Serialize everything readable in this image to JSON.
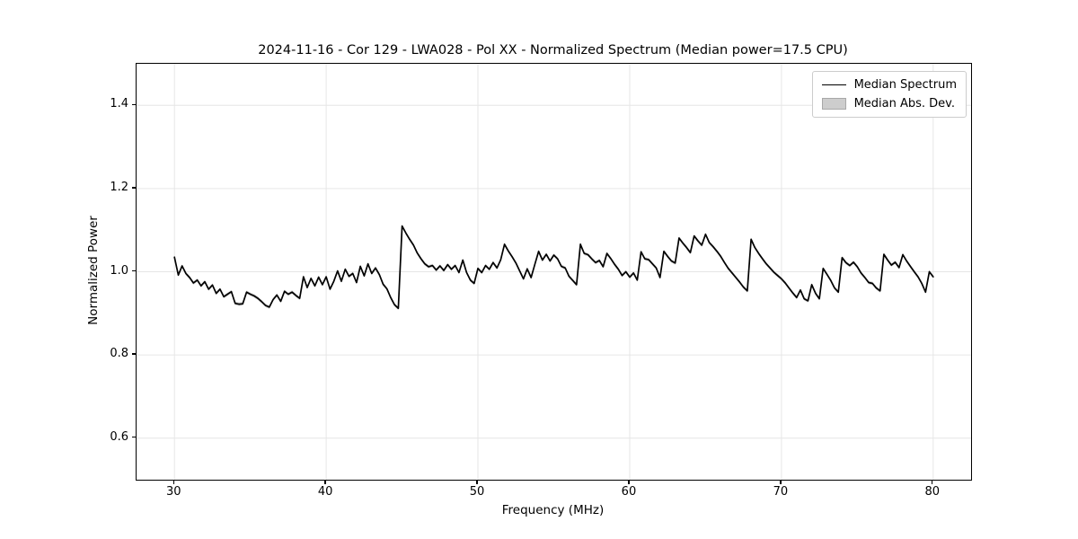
{
  "figure": {
    "background": "#ffffff"
  },
  "chart_data": {
    "type": "line",
    "title": "2024-11-16 - Cor 129 - LWA028 - Pol XX - Normalized Spectrum (Median power=17.5 CPU)",
    "xlabel": "Frequency (MHz)",
    "ylabel": "Normalized Power",
    "xlim": [
      27.5,
      82.5
    ],
    "ylim": [
      0.5,
      1.5
    ],
    "grid": true,
    "grid_color": "#e6e6e6",
    "axis_color": "#000000",
    "legend_position": "upper right",
    "xticks": {
      "values": [
        30,
        40,
        50,
        60,
        70,
        80
      ],
      "labels": [
        "30",
        "40",
        "50",
        "60",
        "70",
        "80"
      ]
    },
    "yticks": {
      "values": [
        0.6,
        0.8,
        1.0,
        1.2,
        1.4
      ],
      "labels": [
        "0.6",
        "0.8",
        "1.0",
        "1.2",
        "1.4"
      ]
    },
    "series": [
      {
        "name": "Median Spectrum",
        "type": "line",
        "color": "#000000",
        "linewidth": 1.7,
        "x_start": 30.0,
        "x_step": 0.25,
        "values": [
          1.035,
          0.992,
          1.014,
          0.996,
          0.986,
          0.973,
          0.98,
          0.966,
          0.976,
          0.958,
          0.968,
          0.948,
          0.958,
          0.94,
          0.946,
          0.952,
          0.924,
          0.922,
          0.923,
          0.951,
          0.946,
          0.942,
          0.936,
          0.928,
          0.919,
          0.915,
          0.933,
          0.944,
          0.929,
          0.953,
          0.946,
          0.951,
          0.943,
          0.936,
          0.988,
          0.962,
          0.984,
          0.966,
          0.987,
          0.969,
          0.988,
          0.958,
          0.977,
          1.002,
          0.977,
          1.006,
          0.989,
          0.996,
          0.974,
          1.013,
          0.99,
          1.019,
          0.996,
          1.009,
          0.993,
          0.97,
          0.959,
          0.938,
          0.921,
          0.912,
          1.11,
          1.093,
          1.078,
          1.064,
          1.045,
          1.031,
          1.019,
          1.012,
          1.015,
          1.004,
          1.014,
          1.003,
          1.017,
          1.006,
          1.015,
          0.998,
          1.028,
          0.998,
          0.98,
          0.972,
          1.008,
          0.998,
          1.015,
          1.006,
          1.022,
          1.009,
          1.029,
          1.066,
          1.05,
          1.036,
          1.021,
          1.002,
          0.983,
          1.007,
          0.986,
          1.018,
          1.049,
          1.028,
          1.042,
          1.026,
          1.04,
          1.031,
          1.013,
          1.009,
          0.989,
          0.979,
          0.969,
          1.066,
          1.044,
          1.041,
          1.031,
          1.022,
          1.027,
          1.012,
          1.044,
          1.032,
          1.018,
          1.006,
          0.991,
          1.0,
          0.987,
          0.997,
          0.98,
          1.048,
          1.031,
          1.029,
          1.019,
          1.009,
          0.986,
          1.049,
          1.037,
          1.026,
          1.021,
          1.081,
          1.069,
          1.058,
          1.046,
          1.086,
          1.074,
          1.064,
          1.09,
          1.07,
          1.06,
          1.049,
          1.037,
          1.022,
          1.008,
          0.997,
          0.986,
          0.975,
          0.963,
          0.954,
          1.078,
          1.058,
          1.044,
          1.031,
          1.019,
          1.009,
          0.999,
          0.991,
          0.983,
          0.973,
          0.961,
          0.949,
          0.938,
          0.956,
          0.935,
          0.93,
          0.969,
          0.948,
          0.935,
          1.008,
          0.994,
          0.979,
          0.961,
          0.951,
          1.034,
          1.022,
          1.015,
          1.023,
          1.012,
          0.997,
          0.986,
          0.974,
          0.972,
          0.961,
          0.954,
          1.042,
          1.028,
          1.016,
          1.023,
          1.01,
          1.041,
          1.026,
          1.013,
          1.0,
          0.988,
          0.972,
          0.951,
          1.0,
          0.988
        ]
      },
      {
        "name": "Median Abs. Dev.",
        "type": "band",
        "color": "#cdcdcd",
        "edge_color": "#a8a8a8",
        "halfwidth": 0.004
      }
    ]
  }
}
